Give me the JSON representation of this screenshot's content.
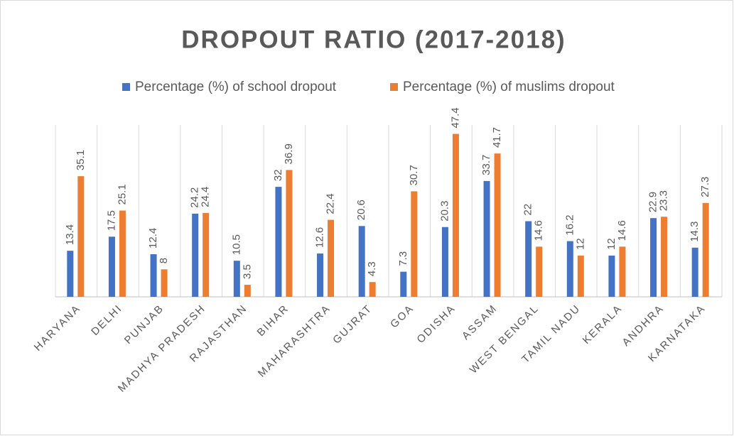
{
  "chart_data": {
    "type": "bar",
    "title": "DROPOUT RATIO (2017-2018)",
    "categories": [
      "HARYANA",
      "DELHI",
      "PUNJAB",
      "MADHYA PRADESH",
      "RAJASTHAN",
      "BIHAR",
      "MAHARASHTRA",
      "GUJRAT",
      "GOA",
      "ODISHA",
      "ASSAM",
      "WEST BENGAL",
      "TAMIL NADU",
      "KERALA",
      "ANDHRA",
      "KARNATAKA"
    ],
    "series": [
      {
        "name": "Percentage (%) of school dropout",
        "color": "#4472c4",
        "values": [
          13.4,
          17.5,
          12.4,
          24.2,
          10.5,
          32,
          12.6,
          20.6,
          7.3,
          20.3,
          33.7,
          22,
          16.2,
          12,
          22.9,
          14.3
        ]
      },
      {
        "name": "Percentage (%) of muslims dropout",
        "color": "#ed7d31",
        "values": [
          35.1,
          25.1,
          8,
          24.4,
          3.5,
          36.9,
          22.4,
          4.3,
          30.7,
          47.4,
          41.7,
          14.6,
          12,
          14.6,
          23.3,
          27.3
        ]
      }
    ],
    "ylim": [
      0,
      50
    ],
    "legend": "top"
  }
}
